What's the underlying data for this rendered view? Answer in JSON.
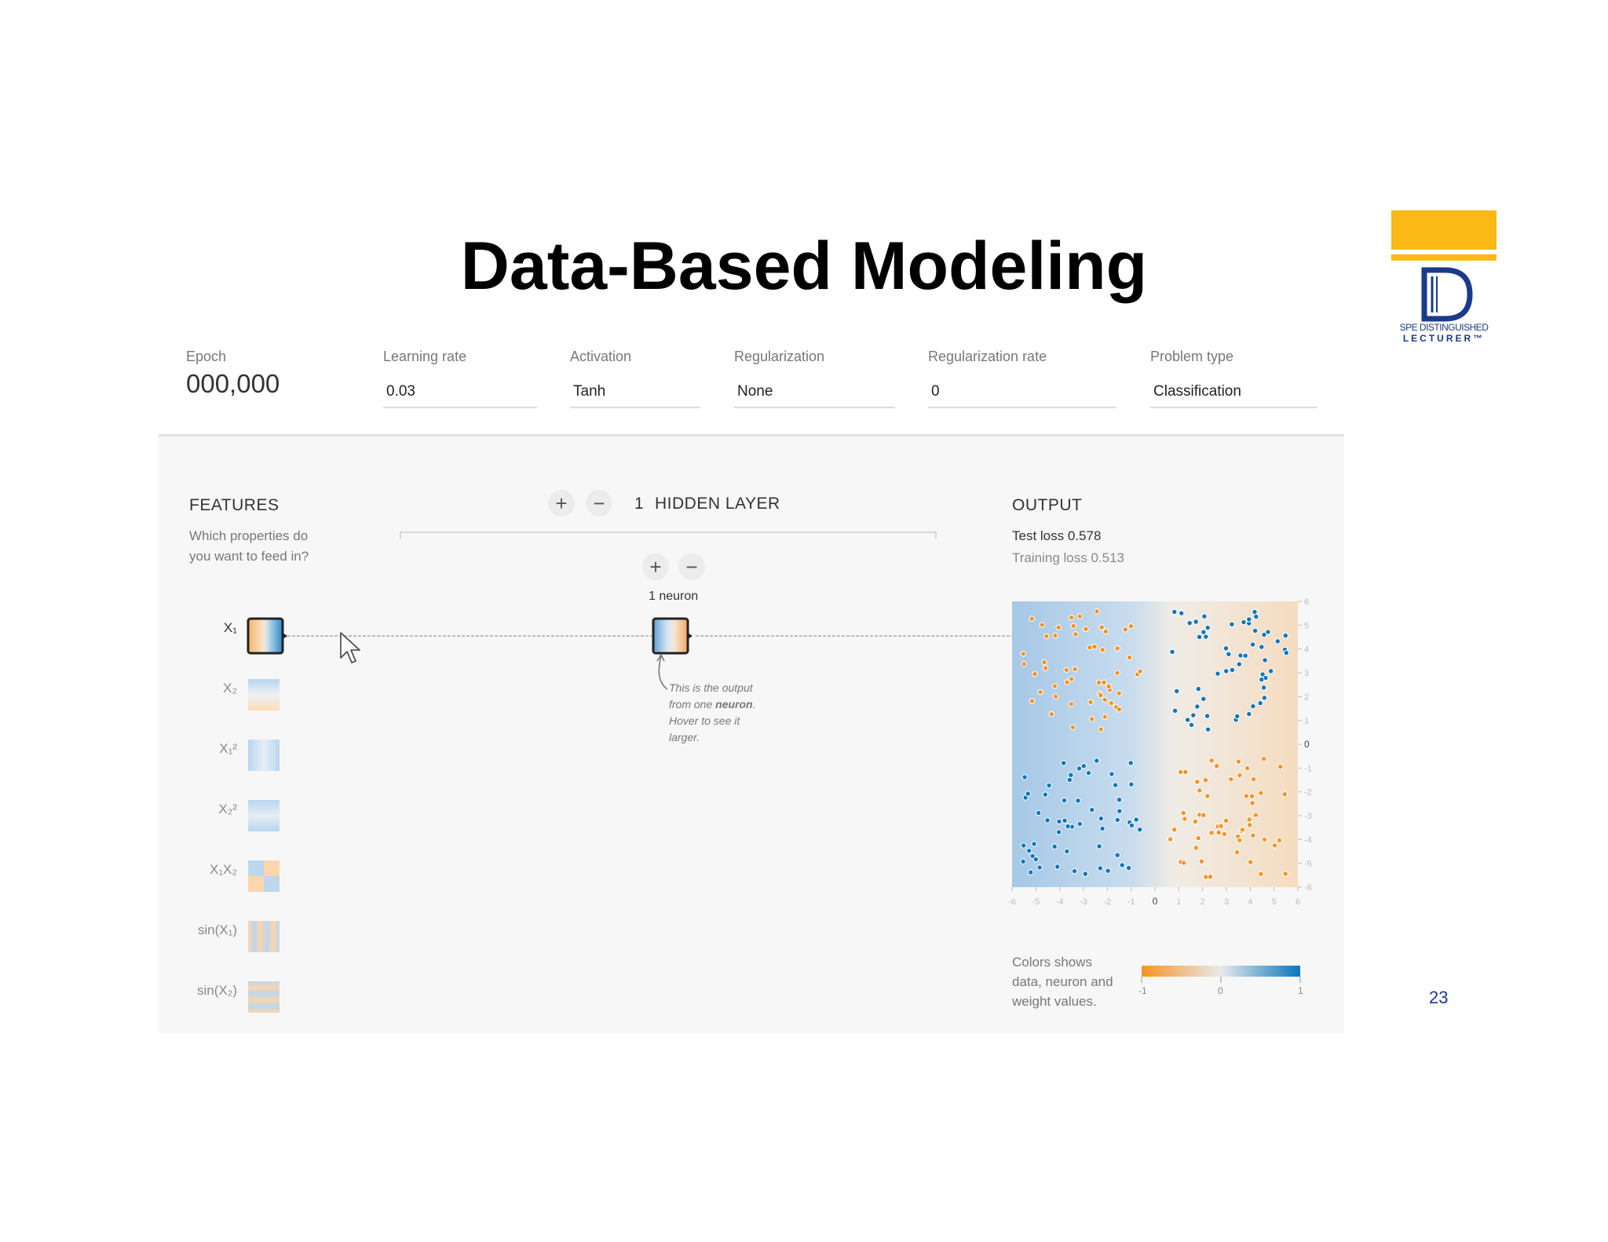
{
  "slide": {
    "title": "Data-Based Modeling",
    "page_number": "23",
    "logo": {
      "line1": "SPE DISTINGUISHED",
      "line2": "LECTURER™",
      "letter": "D",
      "accent": "#fbb916",
      "brand": "#1b3a8c"
    }
  },
  "controls": {
    "epoch": {
      "label": "Epoch",
      "value": "000,000"
    },
    "learning_rate": {
      "label": "Learning rate",
      "value": "0.03"
    },
    "activation": {
      "label": "Activation",
      "value": "Tanh"
    },
    "regularization": {
      "label": "Regularization",
      "value": "None"
    },
    "regularization_rate": {
      "label": "Regularization rate",
      "value": "0"
    },
    "problem_type": {
      "label": "Problem type",
      "value": "Classification"
    }
  },
  "features": {
    "title": "FEATURES",
    "subtitle_line1": "Which properties do",
    "subtitle_line2": "you want to feed in?",
    "items": [
      {
        "label": "X₁",
        "active": true
      },
      {
        "label": "X₂",
        "active": false
      },
      {
        "label": "X₁²",
        "active": false
      },
      {
        "label": "X₂²",
        "active": false
      },
      {
        "label": "X₁X₂",
        "active": false
      },
      {
        "label": "sin(X₁)",
        "active": false
      },
      {
        "label": "sin(X₂)",
        "active": false
      }
    ]
  },
  "hidden": {
    "plus": "+",
    "minus": "−",
    "count": "1",
    "title": "HIDDEN LAYER",
    "neuron_plus": "+",
    "neuron_minus": "−",
    "neuron_label": "1 neuron",
    "note_line1": "This is the output",
    "note_line2_pre": "from one ",
    "note_line2_bold": "neuron",
    "note_line2_post": ".",
    "note_line3": "Hover to see it",
    "note_line4": "larger."
  },
  "output": {
    "title": "OUTPUT",
    "test_loss": "Test loss 0.578",
    "training_loss": "Training loss 0.513",
    "legend_line1": "Colors shows",
    "legend_line2": "data, neuron and",
    "legend_line3": "weight values.",
    "legend_ticks": [
      "-1",
      "0",
      "1"
    ]
  },
  "colors": {
    "orange": "#f59322",
    "blue": "#0877bd"
  },
  "chart_data": {
    "type": "scatter",
    "xlim": [
      -6,
      6
    ],
    "ylim": [
      -6,
      6
    ],
    "x_ticks": [
      "-6",
      "-5",
      "-4",
      "-3",
      "-2",
      "-1",
      "0",
      "1",
      "2",
      "3",
      "4",
      "5",
      "6"
    ],
    "y_ticks": [
      "6",
      "5",
      "4",
      "3",
      "2",
      "1",
      "0",
      "-1",
      "-2",
      "-3",
      "-4",
      "-5",
      "-6"
    ],
    "series": [
      {
        "class": "orange",
        "quadrants": [
          "top-left",
          "bottom-right"
        ],
        "points_per_quadrant": 55
      },
      {
        "class": "blue",
        "quadrants": [
          "top-right",
          "bottom-left"
        ],
        "points_per_quadrant": 55
      }
    ]
  }
}
